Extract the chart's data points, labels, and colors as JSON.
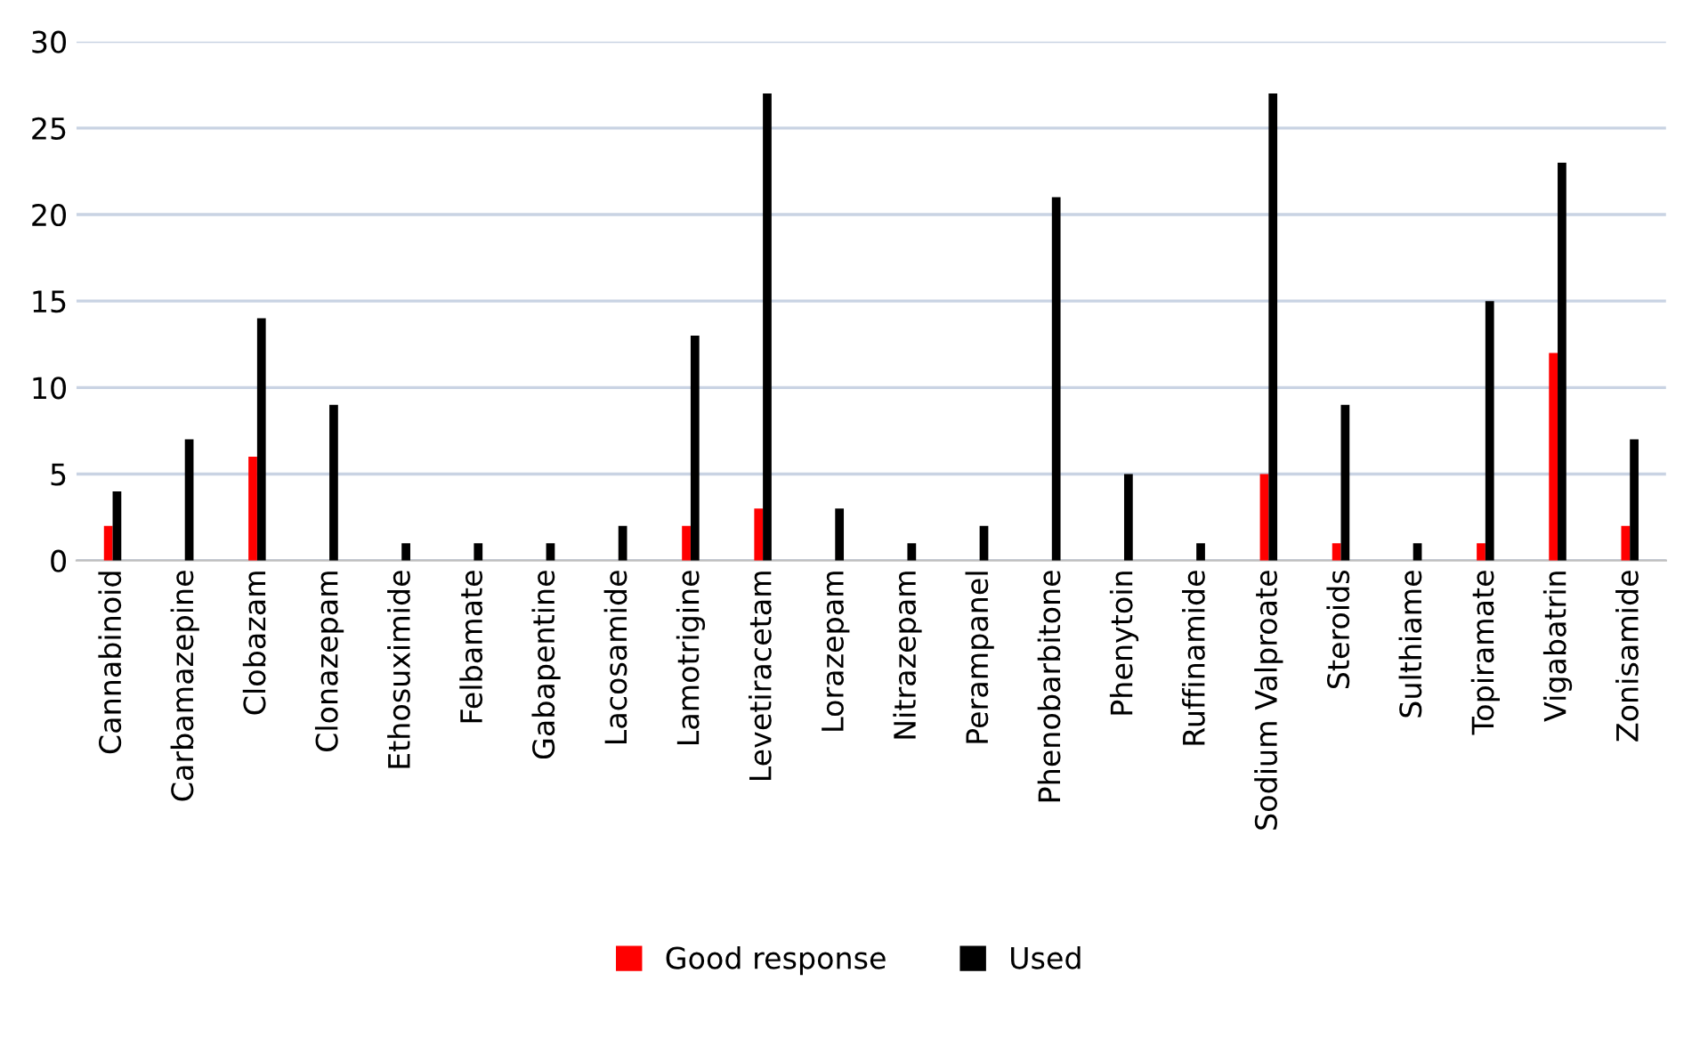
{
  "chart_data": {
    "type": "bar",
    "categories": [
      "Cannabinoid",
      "Carbamazepine",
      "Clobazam",
      "Clonazepam",
      "Ethosuximide",
      "Felbamate",
      "Gabapentine",
      "Lacosamide",
      "Lamotrigine",
      "Levetiracetam",
      "Lorazepam",
      "Nitrazepam",
      "Perampanel",
      "Phenobarbitone",
      "Phenytoin",
      "Ruffinamide",
      "Sodium Valproate",
      "Steroids",
      "Sulthiame",
      "Topiramate",
      "Vigabatrin",
      "Zonisamide"
    ],
    "series": [
      {
        "name": "Good response",
        "color": "#ff0000",
        "values": [
          2,
          0,
          6,
          0,
          0,
          0,
          0,
          0,
          2,
          3,
          0,
          0,
          0,
          0,
          0,
          0,
          5,
          1,
          0,
          1,
          12,
          2
        ]
      },
      {
        "name": "Used",
        "color": "#000000",
        "values": [
          4,
          7,
          14,
          9,
          1,
          1,
          1,
          2,
          13,
          27,
          3,
          1,
          2,
          21,
          5,
          1,
          27,
          9,
          1,
          15,
          23,
          7
        ]
      }
    ],
    "ylim": [
      0,
      30
    ],
    "yticks": [
      0,
      5,
      10,
      15,
      20,
      25,
      30
    ],
    "grid": "y",
    "legend": "bottom"
  }
}
